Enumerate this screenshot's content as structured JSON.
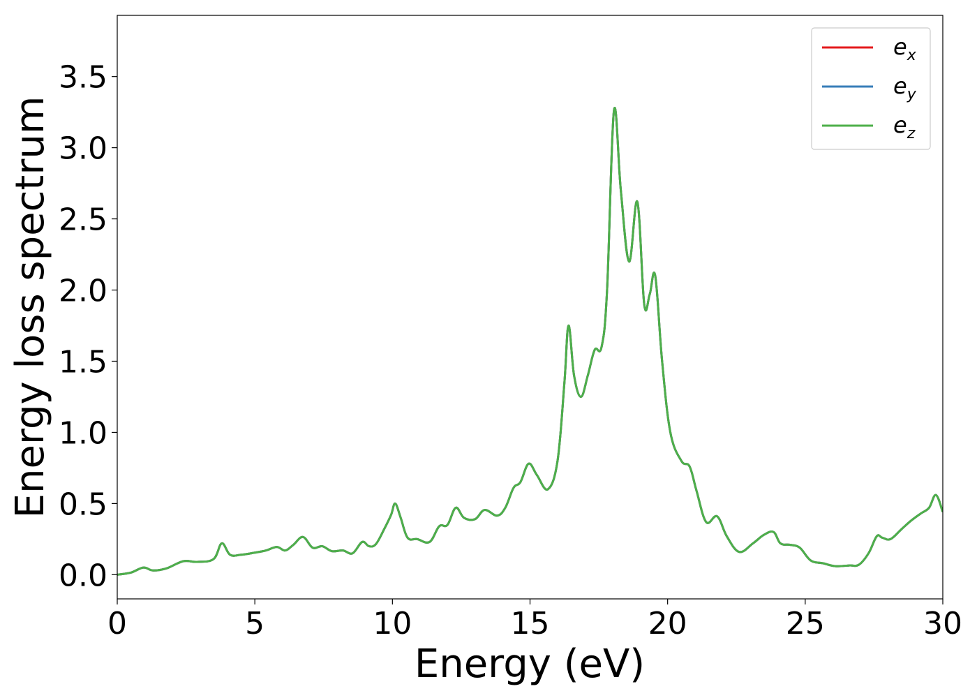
{
  "chart_data": {
    "type": "line",
    "xlabel": "Energy (eV)",
    "ylabel": "Energy loss spectrum",
    "xlim": [
      0,
      30
    ],
    "ylim": [
      -0.17,
      3.93
    ],
    "xticks": [
      "0",
      "5",
      "10",
      "15",
      "20",
      "25",
      "30"
    ],
    "yticks": [
      "0.0",
      "0.5",
      "1.0",
      "1.5",
      "2.0",
      "2.5",
      "3.0",
      "3.5"
    ],
    "grid": false,
    "legend_position": "top-right",
    "legend": [
      {
        "base": "e",
        "sub": "x",
        "color": "#e41a1c"
      },
      {
        "base": "e",
        "sub": "y",
        "color": "#377eb8"
      },
      {
        "base": "e",
        "sub": "z",
        "color": "#4daf4a"
      }
    ],
    "x": [
      0,
      0.5,
      0.95,
      1.3,
      1.8,
      2.4,
      2.9,
      3.5,
      3.8,
      4.1,
      4.5,
      5.0,
      5.4,
      5.8,
      6.1,
      6.4,
      6.75,
      7.1,
      7.45,
      7.8,
      8.2,
      8.55,
      8.9,
      9.15,
      9.4,
      9.7,
      9.95,
      10.1,
      10.3,
      10.55,
      10.9,
      11.35,
      11.7,
      12.0,
      12.3,
      12.6,
      13.0,
      13.35,
      13.8,
      14.1,
      14.4,
      14.65,
      14.95,
      15.25,
      15.65,
      16.0,
      16.25,
      16.4,
      16.6,
      16.85,
      17.1,
      17.35,
      17.6,
      17.8,
      18.05,
      18.3,
      18.6,
      18.9,
      19.15,
      19.35,
      19.55,
      19.8,
      20.1,
      20.5,
      20.8,
      21.05,
      21.4,
      21.8,
      22.15,
      22.6,
      23.1,
      23.5,
      23.85,
      24.1,
      24.45,
      24.8,
      25.2,
      25.65,
      26.1,
      26.6,
      26.95,
      27.3,
      27.6,
      27.8,
      28.1,
      28.5,
      28.85,
      29.2,
      29.5,
      29.75,
      30.0
    ],
    "series": [
      {
        "name": "e_x",
        "color": "#e41a1c",
        "values": [
          0.0,
          0.015,
          0.05,
          0.03,
          0.045,
          0.095,
          0.09,
          0.11,
          0.22,
          0.14,
          0.14,
          0.155,
          0.17,
          0.195,
          0.17,
          0.21,
          0.265,
          0.19,
          0.2,
          0.165,
          0.17,
          0.15,
          0.23,
          0.2,
          0.215,
          0.32,
          0.42,
          0.5,
          0.4,
          0.26,
          0.25,
          0.23,
          0.34,
          0.35,
          0.47,
          0.4,
          0.39,
          0.455,
          0.415,
          0.47,
          0.61,
          0.65,
          0.78,
          0.7,
          0.6,
          0.8,
          1.35,
          1.75,
          1.4,
          1.25,
          1.4,
          1.58,
          1.6,
          2.0,
          3.26,
          2.7,
          2.2,
          2.62,
          1.9,
          1.97,
          2.1,
          1.5,
          1.0,
          0.8,
          0.76,
          0.59,
          0.37,
          0.41,
          0.27,
          0.16,
          0.22,
          0.28,
          0.3,
          0.22,
          0.21,
          0.19,
          0.1,
          0.08,
          0.06,
          0.065,
          0.07,
          0.15,
          0.27,
          0.26,
          0.25,
          0.32,
          0.38,
          0.43,
          0.47,
          0.56,
          0.44
        ]
      },
      {
        "name": "e_y",
        "color": "#377eb8",
        "values": [
          0.0,
          0.015,
          0.05,
          0.03,
          0.045,
          0.095,
          0.09,
          0.11,
          0.22,
          0.14,
          0.14,
          0.155,
          0.17,
          0.195,
          0.17,
          0.21,
          0.265,
          0.19,
          0.2,
          0.165,
          0.17,
          0.15,
          0.23,
          0.2,
          0.215,
          0.32,
          0.42,
          0.5,
          0.4,
          0.26,
          0.25,
          0.23,
          0.34,
          0.35,
          0.47,
          0.4,
          0.39,
          0.455,
          0.415,
          0.47,
          0.61,
          0.65,
          0.78,
          0.7,
          0.6,
          0.8,
          1.35,
          1.75,
          1.4,
          1.25,
          1.4,
          1.58,
          1.6,
          2.0,
          3.26,
          2.7,
          2.2,
          2.62,
          1.9,
          1.97,
          2.1,
          1.5,
          1.0,
          0.8,
          0.76,
          0.59,
          0.37,
          0.41,
          0.27,
          0.16,
          0.22,
          0.28,
          0.3,
          0.22,
          0.21,
          0.19,
          0.1,
          0.08,
          0.06,
          0.065,
          0.07,
          0.15,
          0.27,
          0.26,
          0.25,
          0.32,
          0.38,
          0.43,
          0.47,
          0.56,
          0.44
        ]
      },
      {
        "name": "e_z",
        "color": "#4daf4a",
        "values": [
          0.0,
          0.015,
          0.05,
          0.03,
          0.045,
          0.095,
          0.09,
          0.11,
          0.22,
          0.14,
          0.14,
          0.155,
          0.17,
          0.195,
          0.17,
          0.21,
          0.265,
          0.19,
          0.2,
          0.165,
          0.17,
          0.15,
          0.23,
          0.2,
          0.215,
          0.32,
          0.42,
          0.5,
          0.4,
          0.26,
          0.25,
          0.23,
          0.34,
          0.35,
          0.47,
          0.4,
          0.39,
          0.455,
          0.415,
          0.47,
          0.61,
          0.65,
          0.78,
          0.7,
          0.6,
          0.8,
          1.35,
          1.75,
          1.4,
          1.25,
          1.4,
          1.58,
          1.6,
          2.0,
          3.26,
          2.7,
          2.2,
          2.62,
          1.9,
          1.97,
          2.1,
          1.5,
          1.0,
          0.8,
          0.76,
          0.59,
          0.37,
          0.41,
          0.27,
          0.16,
          0.22,
          0.28,
          0.3,
          0.22,
          0.21,
          0.19,
          0.1,
          0.08,
          0.06,
          0.065,
          0.07,
          0.15,
          0.27,
          0.26,
          0.25,
          0.32,
          0.38,
          0.43,
          0.47,
          0.56,
          0.44
        ]
      }
    ]
  }
}
